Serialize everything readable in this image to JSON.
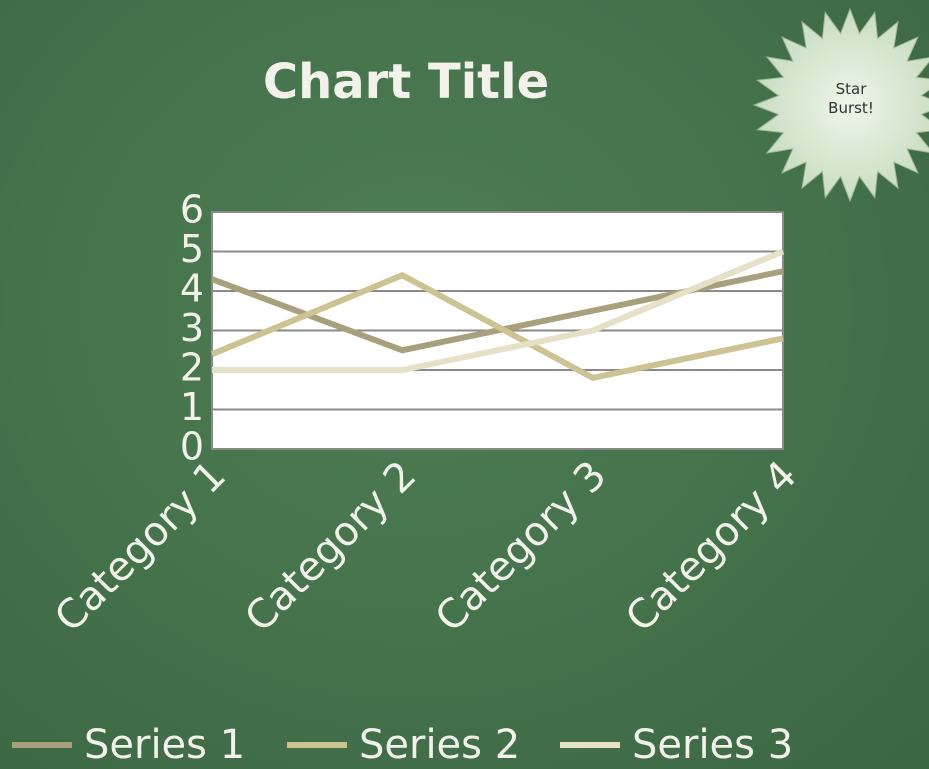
{
  "chart_data": {
    "type": "line",
    "title": "Chart Title",
    "categories": [
      "Category 1",
      "Category 2",
      "Category 3",
      "Category 4"
    ],
    "series": [
      {
        "name": "Series 1",
        "color": "#a8a07c",
        "values": [
          4.3,
          2.5,
          3.5,
          4.5
        ]
      },
      {
        "name": "Series 2",
        "color": "#cdc291",
        "values": [
          2.4,
          4.4,
          1.8,
          2.8
        ]
      },
      {
        "name": "Series 3",
        "color": "#e5e0c6",
        "values": [
          2,
          2,
          3,
          5
        ]
      }
    ],
    "ylim": [
      0,
      6
    ],
    "yticks": [
      0,
      1,
      2,
      3,
      4,
      5,
      6
    ],
    "grid": true,
    "legend": "bottom",
    "annotation": "Star Burst!"
  }
}
